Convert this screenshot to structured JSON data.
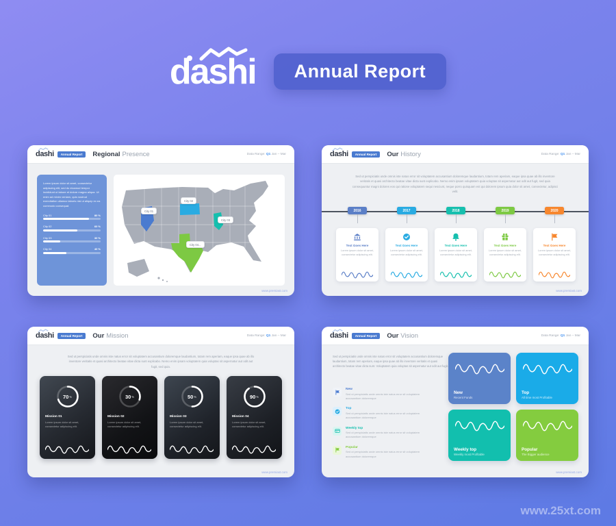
{
  "header": {
    "brand": "dashi",
    "badge": "Annual Report"
  },
  "watermark": "www.25xt.com",
  "slide_common": {
    "brand": "dashi",
    "badge": "Annual Report",
    "data_range_label": "Data Range:",
    "quarter": "Q1",
    "period": "Jan – Mar",
    "site": "www.premiast.com"
  },
  "regional": {
    "title_bold": "Regional",
    "title_light": "Presence",
    "panel_text": "Lorem ipsum dolor sit amet, consectetur adipiscing elit, sed do eiusmod tempor incididunt ut labore et dolore magna aliqua. Ut enim ad minim veniam, quis nostrud exercitation ullamco laboris nisi ut aliquip ex ea commodo consequat.",
    "cities": [
      {
        "name": "City 01",
        "value": "80 %",
        "pct": 80
      },
      {
        "name": "City 02",
        "value": "60 %",
        "pct": 60
      },
      {
        "name": "City 03",
        "value": "30 %",
        "pct": 30
      },
      {
        "name": "City 04",
        "value": "40 %",
        "pct": 40
      }
    ],
    "map": {
      "labels": [
        "City 01",
        "City 02",
        "City 03",
        "City 04..."
      ],
      "state_colors": [
        "#4a7bd0",
        "#29abe2",
        "#16bfae",
        "#7dc943"
      ]
    }
  },
  "history": {
    "title_bold": "Our",
    "title_light": "History",
    "paragraph": "Sed ut perspiciatis unde omnis iste natus error sit voluptatem accusantium doloremque laudantium, totam rem aperiam, eaque ipsa quae ab illo inventore veritatis et quasi architecto beatae vitae dicta sunt explicabo. Nemo enim ipsam voluptatem quia voluptas sit aspernatur aut odit aut fugit, sed quia consequuntur magni dolores eos qui ratione voluptatem sequi nesciunt, neque porro quisquam est qui dolorem ipsum quia dolor sit amet, consectetur, adipisci velit.",
    "milestones": [
      {
        "year": "2016",
        "color": "#5b7fc7",
        "icon": "bank-icon",
        "title": "Text Goes Here",
        "text": "Lorem ipsum dolor sit amet, consectetur adipiscing elit."
      },
      {
        "year": "2017",
        "color": "#29abe2",
        "icon": "badge-check-icon",
        "title": "Text Goes Here",
        "text": "Lorem ipsum dolor sit amet, consectetur adipiscing elit."
      },
      {
        "year": "2018",
        "color": "#16bfae",
        "icon": "bell-icon",
        "title": "Text Goes Here",
        "text": "Lorem ipsum dolor sit amet, consectetur adipiscing elit."
      },
      {
        "year": "2019",
        "color": "#7dc943",
        "icon": "gift-icon",
        "title": "Text Goes Here",
        "text": "Lorem ipsum dolor sit amet, consectetur adipiscing elit."
      },
      {
        "year": "2020",
        "color": "#f7872e",
        "icon": "flag-icon",
        "title": "Text Goes Here",
        "text": "Lorem ipsum dolor sit amet, consectetur adipiscing elit."
      }
    ]
  },
  "mission": {
    "title_bold": "Our",
    "title_light": "Mission",
    "paragraph": "Sed ut perspiciatis unde omnis iste natus error sit voluptatem accusantium doloremque laudantium, totam rem aperiam, eaque ipsa quae ab illo inventore veritatis et quasi architecto beatae vitae dicta sunt explicabo. Nemo enim ipsam voluptatem quia voluptas sit aspernatur aut odit aut fugit, sed quia.",
    "missions": [
      {
        "label": "Mission 01",
        "percent": 70,
        "unit": "%",
        "text": "Lorem ipsum dolor sit amet, consectetur adipiscing elit."
      },
      {
        "label": "Mission 02",
        "percent": 30,
        "unit": "%",
        "text": "Lorem ipsum dolor sit amet, consectetur adipiscing elit."
      },
      {
        "label": "Mission 03",
        "percent": 50,
        "unit": "%",
        "text": "Lorem ipsum dolor sit amet, consectetur adipiscing elit."
      },
      {
        "label": "Mission 04",
        "percent": 90,
        "unit": "%",
        "text": "Lorem ipsum dolor sit amet, consectetur adipiscing elit."
      }
    ]
  },
  "vision": {
    "title_bold": "Our",
    "title_light": "Vision",
    "paragraph": "Sed ut perspiciatis unde omnis iste natus error sit voluptatem accusantium doloremque laudantium, totam rem aperiam, eaque ipsa quae ab illo inventore veritatis et quasi architecto beatae vitae dicta sunt. Voluptatem quia voluptas sit aspernatur aut odit aut fugit.",
    "features": [
      {
        "label": "New",
        "icon": "flag-icon",
        "color": "#4a7bd0",
        "icon_bg": "#f0f3f8",
        "text": "Sed ut perspiciatis unde omnis iste natus error sit voluptatem accusantium doloremque"
      },
      {
        "label": "Top",
        "icon": "badge-check-icon",
        "color": "#29abe2",
        "icon_bg": "#dcf0fc",
        "text": "Sed ut perspiciatis unde omnis iste natus error sit voluptatem accusantium doloremque"
      },
      {
        "label": "Weekly top",
        "icon": "card-icon",
        "color": "#12bfae",
        "icon_bg": "#daf5f1",
        "text": "Sed ut perspiciatis unde omnis iste natus error sit voluptatem accusantium doloremque"
      },
      {
        "label": "Popular",
        "icon": "flag-icon",
        "color": "#84cc3f",
        "icon_bg": "#eaf7d9",
        "text": "Sed ut perspiciatis unde omnis iste natus error sit voluptatem accusantium doloremque"
      }
    ],
    "cards": [
      {
        "title": "New",
        "subtitle": "Recent Funds",
        "color": "#5b83c9"
      },
      {
        "title": "Top",
        "subtitle": "All time most Profitable",
        "color": "#1aabe8"
      },
      {
        "title": "Weekly top",
        "subtitle": "Weekly most Profitable",
        "color": "#12bfae"
      },
      {
        "title": "Popular",
        "subtitle": "The Bigger audience",
        "color": "#84cc3f"
      }
    ]
  }
}
